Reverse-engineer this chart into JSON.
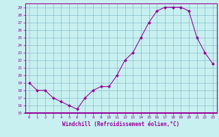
{
  "hours": [
    0,
    1,
    2,
    3,
    4,
    5,
    6,
    7,
    8,
    9,
    10,
    11,
    12,
    13,
    14,
    15,
    16,
    17,
    18,
    19,
    20,
    21,
    22,
    23
  ],
  "windchill": [
    19,
    18,
    18,
    17,
    16.5,
    16,
    15.5,
    17,
    18,
    18.5,
    18.5,
    20,
    22,
    23,
    25,
    27,
    28.5,
    29,
    29,
    29,
    28.5,
    25,
    23,
    21.5
  ],
  "line_color": "#990099",
  "bg_color": "#c8f0f0",
  "grid_color": "#88bbcc",
  "xlabel": "Windchill (Refroidissement éolien,°C)",
  "ylim": [
    15,
    29.5
  ],
  "yticks": [
    15,
    16,
    17,
    18,
    19,
    20,
    21,
    22,
    23,
    24,
    25,
    26,
    27,
    28,
    29
  ],
  "xticks": [
    0,
    1,
    2,
    3,
    4,
    5,
    6,
    7,
    8,
    9,
    10,
    11,
    12,
    13,
    14,
    15,
    16,
    17,
    18,
    19,
    20,
    21,
    22,
    23
  ]
}
